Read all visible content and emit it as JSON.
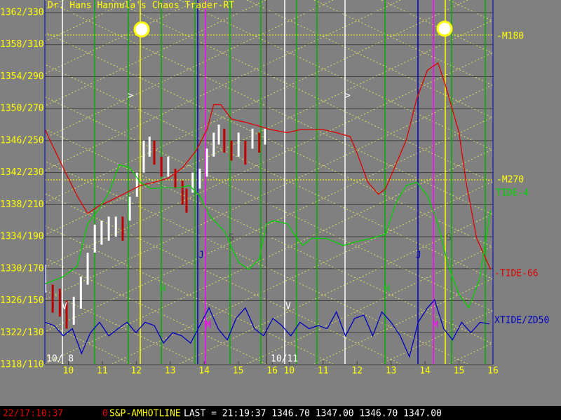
{
  "chart_data": {
    "type": "chaos",
    "title": "Dr. Hans Hannula's Chaos Trader-RT",
    "xlim": [
      -0.19,
      13.0
    ],
    "ylim": [
      1318,
      1362
    ],
    "xticks": [
      {
        "value": 0.5,
        "label": "10"
      },
      {
        "value": 1.5,
        "label": "11"
      },
      {
        "value": 2.5,
        "label": "12"
      },
      {
        "value": 3.5,
        "label": "13"
      },
      {
        "value": 4.5,
        "label": "14"
      },
      {
        "value": 5.5,
        "label": "15"
      },
      {
        "value": 6.5,
        "label": "16"
      },
      {
        "value": 7.0,
        "label": "10"
      },
      {
        "value": 8.0,
        "label": "11"
      },
      {
        "value": 9.0,
        "label": "12"
      },
      {
        "value": 10.0,
        "label": "13"
      },
      {
        "value": 11.0,
        "label": "14"
      },
      {
        "value": 12.0,
        "label": "15"
      },
      {
        "value": 13.0,
        "label": "16"
      }
    ],
    "yticks": [
      {
        "value": 1362,
        "label": "1362/330"
      },
      {
        "value": 1358,
        "label": "1358/310"
      },
      {
        "value": 1354,
        "label": "1354/290"
      },
      {
        "value": 1350,
        "label": "1350/270"
      },
      {
        "value": 1346,
        "label": "1346/250"
      },
      {
        "value": 1342,
        "label": "1342/230"
      },
      {
        "value": 1338,
        "label": "1338/210"
      },
      {
        "value": 1334,
        "label": "1334/190"
      },
      {
        "value": 1330,
        "label": "1330/170"
      },
      {
        "value": 1326,
        "label": "1326/150"
      },
      {
        "value": 1322,
        "label": "1322/130"
      },
      {
        "value": 1318,
        "label": "1318/110"
      }
    ],
    "grid": true,
    "date_labels": [
      "10/ 8",
      "10/11"
    ],
    "price": {
      "up_color": "#ffffff",
      "down_color": "#c00000",
      "x": [
        -0.18,
        0.04,
        0.25,
        0.45,
        0.66,
        0.87,
        1.07,
        1.28,
        1.48,
        1.69,
        1.9,
        2.1,
        2.31,
        2.52,
        2.72,
        2.89,
        3.03,
        3.24,
        3.44,
        3.65,
        3.86,
        3.98,
        4.16,
        4.37,
        4.58,
        4.78,
        4.93,
        5.09,
        5.3,
        5.51,
        5.71,
        5.92,
        6.12,
        6.29
      ],
      "high": [
        1330.5,
        1328,
        1327.5,
        1326,
        1326.5,
        1329,
        1332,
        1335.5,
        1336,
        1336.5,
        1336.5,
        1336.5,
        1339,
        1342,
        1346,
        1346.5,
        1346,
        1344,
        1344,
        1342.5,
        1341,
        1340,
        1342,
        1342.5,
        1345,
        1347,
        1348,
        1347.5,
        1346,
        1347,
        1346,
        1347.5,
        1347,
        1347.5
      ],
      "low": [
        1327,
        1324.5,
        1324,
        1322.5,
        1323,
        1325,
        1328,
        1332,
        1333,
        1333.5,
        1334,
        1333.5,
        1336,
        1339,
        1342,
        1344,
        1343,
        1341.5,
        1341.5,
        1340,
        1338,
        1337,
        1339.5,
        1340,
        1341.5,
        1344,
        1345.5,
        1344.5,
        1343.5,
        1344,
        1343,
        1345,
        1344.5,
        1345.5
      ]
    },
    "series": [
      {
        "name": "-TIDE-66",
        "color": "#e00000",
        "x": [
          -0.19,
          0.35,
          0.76,
          1.07,
          1.38,
          1.79,
          2.21,
          2.62,
          3.03,
          3.44,
          3.86,
          4.27,
          4.58,
          4.78,
          4.99,
          5.3,
          5.71,
          6.12,
          6.43,
          6.95,
          7.36,
          7.98,
          8.39,
          8.8,
          9.01,
          9.32,
          9.63,
          9.84,
          10.14,
          10.45,
          10.76,
          11.07,
          11.38,
          11.59,
          12.0,
          12.21,
          12.52,
          12.93
        ],
        "values": [
          1347.4,
          1342.6,
          1339.1,
          1336.9,
          1337.8,
          1338.6,
          1339.5,
          1340.4,
          1340.8,
          1341.3,
          1342.6,
          1344.8,
          1347.4,
          1350.5,
          1350.5,
          1348.7,
          1348.3,
          1347.8,
          1347.4,
          1347.0,
          1347.4,
          1347.4,
          1347.0,
          1346.5,
          1344.3,
          1340.8,
          1339.3,
          1340.0,
          1343.0,
          1346.1,
          1351.3,
          1354.8,
          1355.7,
          1353.1,
          1347.0,
          1340.8,
          1333.8,
          1329.9
        ]
      },
      {
        "name": "TIDE-4",
        "color": "#00d000",
        "x": [
          -0.19,
          0.35,
          0.76,
          1.07,
          1.38,
          1.69,
          2.0,
          2.31,
          2.62,
          2.93,
          3.24,
          3.75,
          4.06,
          4.37,
          4.68,
          5.09,
          5.51,
          5.81,
          6.12,
          6.33,
          6.54,
          6.95,
          7.15,
          7.4,
          7.67,
          8.08,
          8.6,
          9.01,
          9.42,
          9.84,
          10.14,
          10.45,
          10.76,
          11.07,
          11.38,
          11.69,
          12.0,
          12.29,
          12.6,
          12.93
        ],
        "values": [
          1328.1,
          1329.0,
          1330.3,
          1335.6,
          1337.3,
          1339.5,
          1343.0,
          1342.6,
          1340.8,
          1340.0,
          1340.1,
          1340.1,
          1340.4,
          1339.1,
          1336.5,
          1334.7,
          1330.8,
          1329.9,
          1331.2,
          1335.6,
          1336.0,
          1335.6,
          1334.3,
          1332.9,
          1333.8,
          1333.8,
          1332.9,
          1333.4,
          1333.8,
          1334.3,
          1338.2,
          1340.4,
          1340.8,
          1339.1,
          1335.6,
          1330.3,
          1326.8,
          1325.1,
          1328.6,
          1337.3
        ]
      },
      {
        "name": "XTIDE/ZD50",
        "color": "#0000c0",
        "x": [
          -0.19,
          0.08,
          0.35,
          0.62,
          0.89,
          1.15,
          1.42,
          1.69,
          1.96,
          2.23,
          2.49,
          2.76,
          3.03,
          3.3,
          3.57,
          3.84,
          4.1,
          4.37,
          4.64,
          4.91,
          5.18,
          5.44,
          5.71,
          5.98,
          6.25,
          6.52,
          6.78,
          7.05,
          7.32,
          7.59,
          7.86,
          8.12,
          8.39,
          8.66,
          8.93,
          9.2,
          9.46,
          9.73,
          10.0,
          10.27,
          10.54,
          10.8,
          11.07,
          11.28,
          11.55,
          11.81,
          12.08,
          12.35,
          12.62,
          12.89
        ],
        "values": [
          1323.3,
          1322.9,
          1321.6,
          1322.5,
          1319.4,
          1322.0,
          1323.3,
          1321.6,
          1322.5,
          1323.3,
          1322.0,
          1323.3,
          1322.9,
          1320.7,
          1322.0,
          1321.6,
          1320.7,
          1322.9,
          1325.1,
          1322.5,
          1321.1,
          1323.8,
          1325.1,
          1322.5,
          1321.6,
          1323.8,
          1322.9,
          1321.6,
          1323.3,
          1322.5,
          1322.9,
          1322.5,
          1324.6,
          1321.6,
          1323.8,
          1324.2,
          1321.6,
          1324.6,
          1323.3,
          1321.6,
          1319.0,
          1323.3,
          1325.1,
          1326.1,
          1322.5,
          1321.1,
          1323.3,
          1322.0,
          1323.3,
          1323.1
        ]
      }
    ],
    "level_labels": [
      "-M180",
      "-M270"
    ],
    "annotations": [
      "J",
      "J",
      "M",
      "M",
      "S",
      "S",
      "H",
      "H",
      "V",
      "V",
      ">",
      ">"
    ]
  },
  "status_bar": {
    "clock": "22/17:10:37",
    "flag": "0",
    "symbol": "S&P-AMHOTLINE",
    "last": "LAST = 21:19:37 1346.70 1347.00 1346.70 1347.00"
  }
}
